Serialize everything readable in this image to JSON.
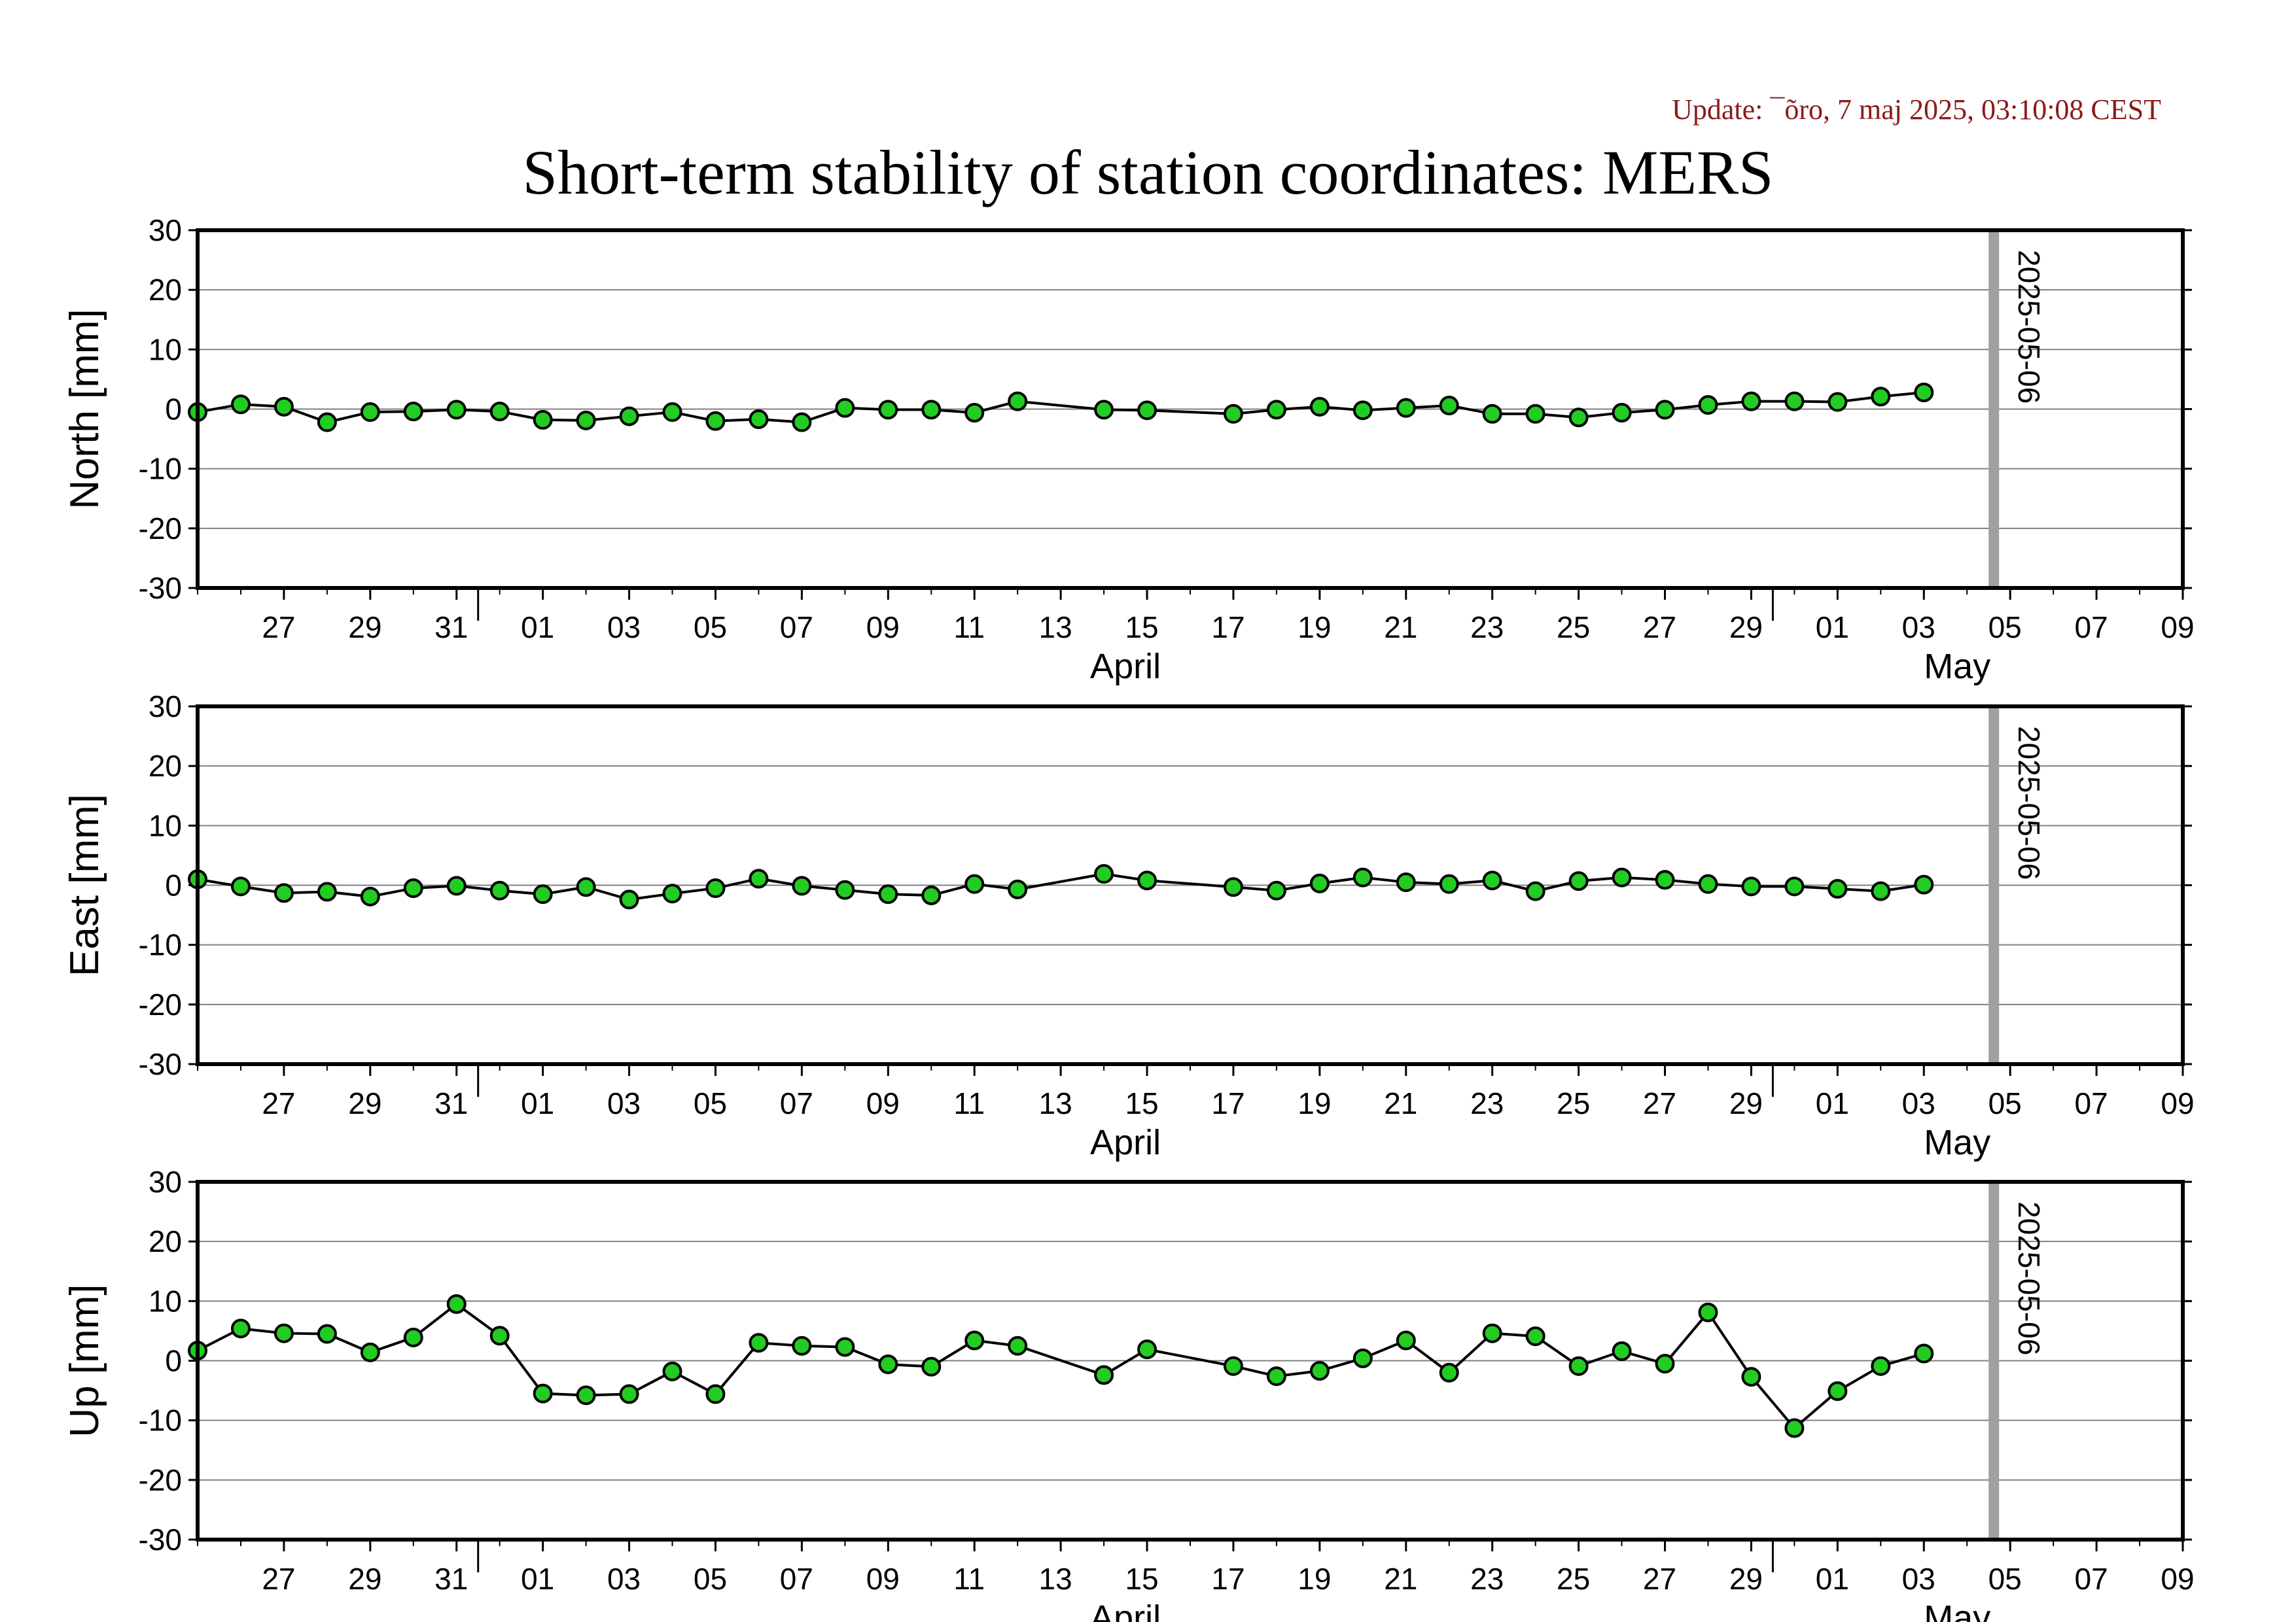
{
  "header": {
    "update": "Update: ¯õro, 7 maj 2025, 03:10:08 CEST",
    "title": "Short-term stability of station coordinates: MERS"
  },
  "colors": {
    "marker_fill": "#22cc22",
    "marker_stroke": "#000000",
    "line": "#000000",
    "grid": "#808080",
    "date_bar": "#a0a0a0",
    "update_text": "#8b1a1a"
  },
  "chart_data": [
    {
      "type": "line",
      "ylabel": "North [mm]",
      "ylim": [
        -30,
        30
      ],
      "yticks": [
        -30,
        -20,
        -10,
        0,
        10,
        20,
        30
      ],
      "xlim": [
        "2025-03-25",
        "2025-05-10"
      ],
      "grid": true,
      "marker_line_label": "2025-05-06",
      "marker_line_date": "2025-05-06",
      "x_tick_labels": [
        "27",
        "29",
        "31",
        "01",
        "03",
        "05",
        "07",
        "09",
        "11",
        "13",
        "15",
        "17",
        "19",
        "21",
        "23",
        "25",
        "27",
        "29",
        "01",
        "03",
        "05",
        "07",
        "09"
      ],
      "x_month_labels": [
        "April",
        "May"
      ],
      "x": [
        "2025-03-25",
        "2025-03-26",
        "2025-03-27",
        "2025-03-28",
        "2025-03-29",
        "2025-03-30",
        "2025-03-31",
        "2025-04-01",
        "2025-04-02",
        "2025-04-03",
        "2025-04-04",
        "2025-04-05",
        "2025-04-06",
        "2025-04-07",
        "2025-04-08",
        "2025-04-09",
        "2025-04-10",
        "2025-04-11",
        "2025-04-12",
        "2025-04-13",
        "2025-04-15",
        "2025-04-16",
        "2025-04-18",
        "2025-04-19",
        "2025-04-20",
        "2025-04-21",
        "2025-04-22",
        "2025-04-23",
        "2025-04-24",
        "2025-04-25",
        "2025-04-26",
        "2025-04-27",
        "2025-04-28",
        "2025-04-29",
        "2025-04-30",
        "2025-05-01",
        "2025-05-02",
        "2025-05-03",
        "2025-05-04"
      ],
      "values": [
        -0.5,
        0.8,
        0.4,
        -2.2,
        -0.5,
        -0.4,
        -0.1,
        -0.4,
        -1.8,
        -1.9,
        -1.2,
        -0.5,
        -2.0,
        -1.7,
        -2.2,
        0.2,
        -0.1,
        -0.1,
        -0.6,
        1.3,
        -0.1,
        -0.2,
        -0.8,
        -0.1,
        0.4,
        -0.2,
        0.2,
        0.6,
        -0.8,
        -0.8,
        -1.4,
        -0.6,
        -0.1,
        0.7,
        1.3,
        1.3,
        1.2,
        2.1,
        2.8
      ]
    },
    {
      "type": "line",
      "ylabel": "East [mm]",
      "ylim": [
        -30,
        30
      ],
      "yticks": [
        -30,
        -20,
        -10,
        0,
        10,
        20,
        30
      ],
      "xlim": [
        "2025-03-25",
        "2025-05-10"
      ],
      "grid": true,
      "marker_line_label": "2025-05-06",
      "marker_line_date": "2025-05-06",
      "x_tick_labels": [
        "27",
        "29",
        "31",
        "01",
        "03",
        "05",
        "07",
        "09",
        "11",
        "13",
        "15",
        "17",
        "19",
        "21",
        "23",
        "25",
        "27",
        "29",
        "01",
        "03",
        "05",
        "07",
        "09"
      ],
      "x_month_labels": [
        "April",
        "May"
      ],
      "x": [
        "2025-03-25",
        "2025-03-26",
        "2025-03-27",
        "2025-03-28",
        "2025-03-29",
        "2025-03-30",
        "2025-03-31",
        "2025-04-01",
        "2025-04-02",
        "2025-04-03",
        "2025-04-04",
        "2025-04-05",
        "2025-04-06",
        "2025-04-07",
        "2025-04-08",
        "2025-04-09",
        "2025-04-10",
        "2025-04-11",
        "2025-04-12",
        "2025-04-13",
        "2025-04-15",
        "2025-04-16",
        "2025-04-18",
        "2025-04-19",
        "2025-04-20",
        "2025-04-21",
        "2025-04-22",
        "2025-04-23",
        "2025-04-24",
        "2025-04-25",
        "2025-04-26",
        "2025-04-27",
        "2025-04-28",
        "2025-04-29",
        "2025-04-30",
        "2025-05-01",
        "2025-05-02",
        "2025-05-03",
        "2025-05-04"
      ],
      "values": [
        1.0,
        -0.2,
        -1.3,
        -1.1,
        -1.9,
        -0.5,
        -0.1,
        -0.9,
        -1.5,
        -0.3,
        -2.4,
        -1.4,
        -0.5,
        1.1,
        -0.1,
        -0.8,
        -1.5,
        -1.7,
        0.2,
        -0.7,
        1.9,
        0.8,
        -0.3,
        -0.9,
        0.3,
        1.3,
        0.5,
        0.2,
        0.8,
        -1.0,
        0.7,
        1.3,
        0.9,
        0.2,
        -0.2,
        -0.2,
        -0.6,
        -1.0,
        0.1
      ]
    },
    {
      "type": "line",
      "ylabel": "Up [mm]",
      "ylim": [
        -30,
        30
      ],
      "yticks": [
        -30,
        -20,
        -10,
        0,
        10,
        20,
        30
      ],
      "xlim": [
        "2025-03-25",
        "2025-05-10"
      ],
      "grid": true,
      "marker_line_label": "2025-05-06",
      "marker_line_date": "2025-05-06",
      "x_tick_labels": [
        "27",
        "29",
        "31",
        "01",
        "03",
        "05",
        "07",
        "09",
        "11",
        "13",
        "15",
        "17",
        "19",
        "21",
        "23",
        "25",
        "27",
        "29",
        "01",
        "03",
        "05",
        "07",
        "09"
      ],
      "x_month_labels": [
        "April",
        "May"
      ],
      "x": [
        "2025-03-25",
        "2025-03-26",
        "2025-03-27",
        "2025-03-28",
        "2025-03-29",
        "2025-03-30",
        "2025-03-31",
        "2025-04-01",
        "2025-04-02",
        "2025-04-03",
        "2025-04-04",
        "2025-04-05",
        "2025-04-06",
        "2025-04-07",
        "2025-04-08",
        "2025-04-09",
        "2025-04-10",
        "2025-04-11",
        "2025-04-12",
        "2025-04-13",
        "2025-04-15",
        "2025-04-16",
        "2025-04-18",
        "2025-04-19",
        "2025-04-20",
        "2025-04-21",
        "2025-04-22",
        "2025-04-23",
        "2025-04-24",
        "2025-04-25",
        "2025-04-26",
        "2025-04-27",
        "2025-04-28",
        "2025-04-29",
        "2025-04-30",
        "2025-05-01",
        "2025-05-02",
        "2025-05-03",
        "2025-05-04"
      ],
      "values": [
        1.7,
        5.4,
        4.6,
        4.5,
        1.4,
        3.9,
        9.5,
        4.2,
        -5.5,
        -5.8,
        -5.6,
        -1.8,
        -5.6,
        3.0,
        2.5,
        2.3,
        -0.6,
        -1.0,
        3.4,
        2.5,
        -2.4,
        1.9,
        -0.9,
        -2.6,
        -1.7,
        0.4,
        3.4,
        -2.0,
        4.6,
        4.1,
        -0.9,
        1.6,
        -0.5,
        8.1,
        -2.7,
        -11.3,
        -5.1,
        -0.9,
        1.2
      ]
    }
  ]
}
